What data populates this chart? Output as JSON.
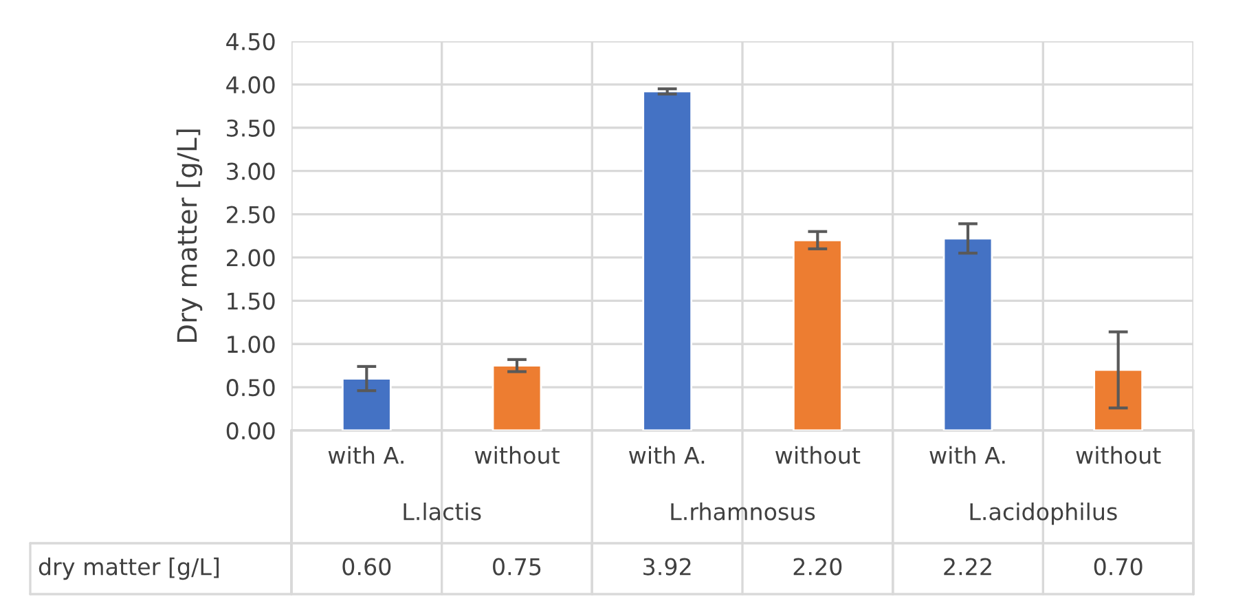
{
  "chart_data": {
    "type": "bar",
    "ylabel": "Dry matter [g/L]",
    "categories": [
      "with A.",
      "without",
      "with A.",
      "without",
      "with A.",
      "without"
    ],
    "annotations": [
      "L.lactis",
      "L.rhamnosus",
      "L.acidophilus"
    ],
    "series": [
      {
        "name": "dry matter [g/L]",
        "colors": [
          "#4472c4",
          "#ed7d31",
          "#4472c4",
          "#ed7d31",
          "#4472c4",
          "#ed7d31"
        ],
        "values": [
          0.6,
          0.75,
          3.92,
          2.2,
          2.22,
          0.7
        ],
        "errors": [
          0.14,
          0.07,
          0.03,
          0.1,
          0.17,
          0.44
        ],
        "value_labels": [
          "0.60",
          "0.75",
          "3.92",
          "2.20",
          "2.22",
          "0.70"
        ]
      }
    ],
    "ylim": [
      0,
      4.5
    ],
    "yticks": [
      {
        "value": 0,
        "label": "0.00"
      },
      {
        "value": 0.5,
        "label": "0.50"
      },
      {
        "value": 1,
        "label": "1.00"
      },
      {
        "value": 1.5,
        "label": "1.50"
      },
      {
        "value": 2,
        "label": "2.00"
      },
      {
        "value": 2.5,
        "label": "2.50"
      },
      {
        "value": 3,
        "label": "3.00"
      },
      {
        "value": 3.5,
        "label": "3.50"
      },
      {
        "value": 4,
        "label": "4.00"
      },
      {
        "value": 4.5,
        "label": "4.50"
      }
    ],
    "grid": true
  }
}
